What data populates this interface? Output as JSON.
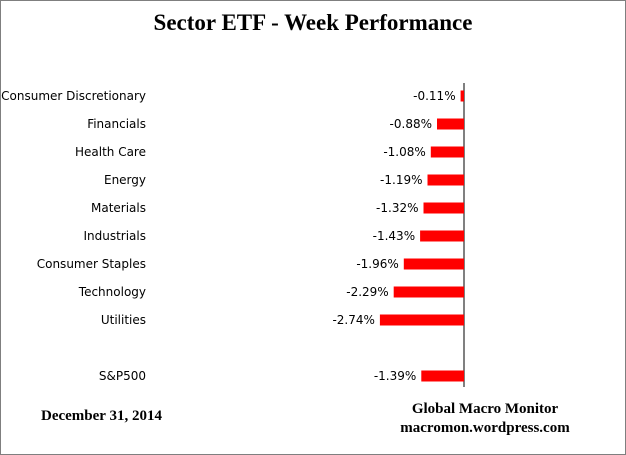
{
  "chart_data": {
    "type": "bar",
    "orientation": "horizontal",
    "title": "Sector ETF - Week Performance",
    "categories": [
      "Consumer Discretionary",
      "Financials",
      "Health Care",
      "Energy",
      "Materials",
      "Industrials",
      "Consumer Staples",
      "Technology",
      "Utilities",
      "",
      "S&P500"
    ],
    "values": [
      -0.11,
      -0.88,
      -1.08,
      -1.19,
      -1.32,
      -1.43,
      -1.96,
      -2.29,
      -2.74,
      null,
      -1.39
    ],
    "value_labels": [
      "-0.11%",
      "-0.88%",
      "-1.08%",
      "-1.19%",
      "-1.32%",
      "-1.43%",
      "-1.96%",
      "-2.29%",
      "-2.74%",
      "",
      "-1.39%"
    ],
    "bar_color": "#ff0000",
    "grid": false,
    "legend": "none"
  },
  "footer": {
    "date": "December 31,  2014",
    "source_line1": "Global Macro Monitor",
    "source_line2": "macromon.wordpress.com"
  }
}
